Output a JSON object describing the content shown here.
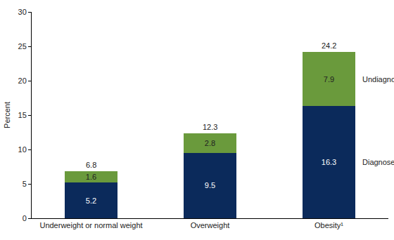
{
  "chart_data": {
    "type": "bar",
    "stacked": true,
    "data_labels": true,
    "grid": false,
    "categories": [
      "Underweight or normal weight",
      "Overweight",
      "Obesity¹"
    ],
    "series": [
      {
        "name": "Diagnosed",
        "color": "#0b2a5b",
        "values": [
          5.2,
          9.5,
          16.3
        ]
      },
      {
        "name": "Undiagnosed",
        "color": "#6a9a3c",
        "values": [
          1.6,
          2.8,
          7.9
        ]
      }
    ],
    "totals": [
      6.8,
      12.3,
      24.2
    ],
    "y_label": "Percent",
    "ylim": [
      0,
      30
    ],
    "yticks": [
      0,
      5,
      10,
      15,
      20,
      25,
      30
    ]
  }
}
